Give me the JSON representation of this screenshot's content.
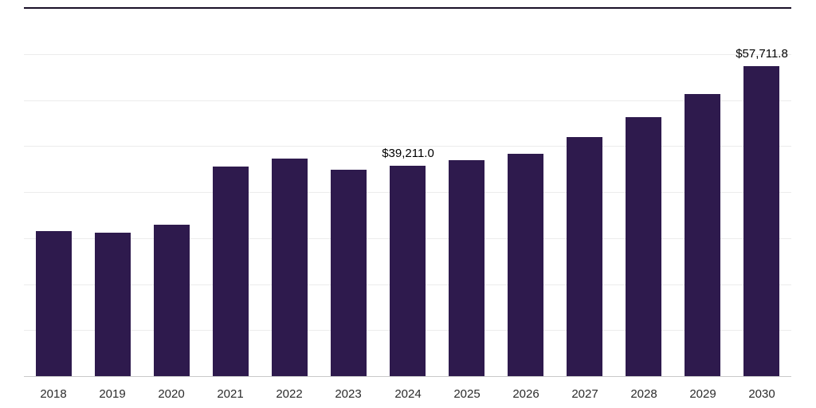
{
  "chart_data": {
    "type": "bar",
    "title": "",
    "xlabel": "",
    "ylabel": "",
    "categories": [
      "2018",
      "2019",
      "2020",
      "2021",
      "2022",
      "2023",
      "2024",
      "2025",
      "2026",
      "2027",
      "2028",
      "2029",
      "2030"
    ],
    "values": [
      27000,
      26700,
      28200,
      39100,
      40500,
      38500,
      39211.0,
      40200,
      41500,
      44600,
      48200,
      52600,
      57711.8
    ],
    "value_labels": [
      "",
      "",
      "",
      "",
      "",
      "",
      "$39,211.0",
      "",
      "",
      "",
      "",
      "",
      "$57,711.8"
    ],
    "ylim": [
      0,
      60000
    ],
    "grid": true,
    "gridline_count": 7,
    "legend": "none",
    "colors": {
      "bar": "#2e1a4d",
      "gridline": "#ececec",
      "axis_line": "#c9c9c9",
      "top_rule": "#1a1028",
      "value_label": "#000000",
      "tick_label": "#2b2b2b"
    }
  }
}
